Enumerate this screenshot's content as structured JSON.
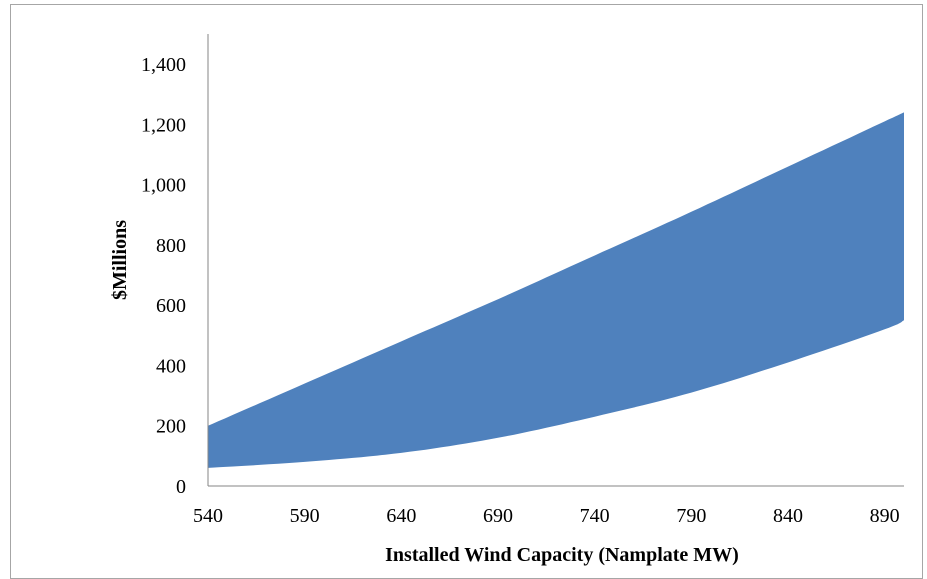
{
  "chart_data": {
    "type": "area",
    "title": "",
    "xlabel": "Installed Wind Capacity (Namplate MW)",
    "ylabel": "$Millions",
    "xlim": [
      540,
      900
    ],
    "ylim": [
      0,
      1500
    ],
    "x_ticks": [
      540,
      590,
      640,
      690,
      740,
      790,
      840,
      890
    ],
    "x_tick_labels": [
      "540",
      "590",
      "640",
      "690",
      "740",
      "790",
      "840",
      "890"
    ],
    "y_ticks": [
      0,
      200,
      400,
      600,
      800,
      1000,
      1200,
      1400
    ],
    "y_tick_labels": [
      "0",
      "200",
      "400",
      "600",
      "800",
      "1,000",
      "1,200",
      "1,400"
    ],
    "grid": false,
    "legend": "none",
    "fill_color": "#4f81bd",
    "x": [
      540,
      590,
      640,
      690,
      740,
      790,
      840,
      890,
      900
    ],
    "series": [
      {
        "values": [
          60,
          80,
          110,
          160,
          230,
          310,
          410,
          520,
          550
        ]
      },
      {
        "values": [
          200,
          340,
          480,
          620,
          765,
          910,
          1060,
          1210,
          1240
        ]
      }
    ]
  }
}
